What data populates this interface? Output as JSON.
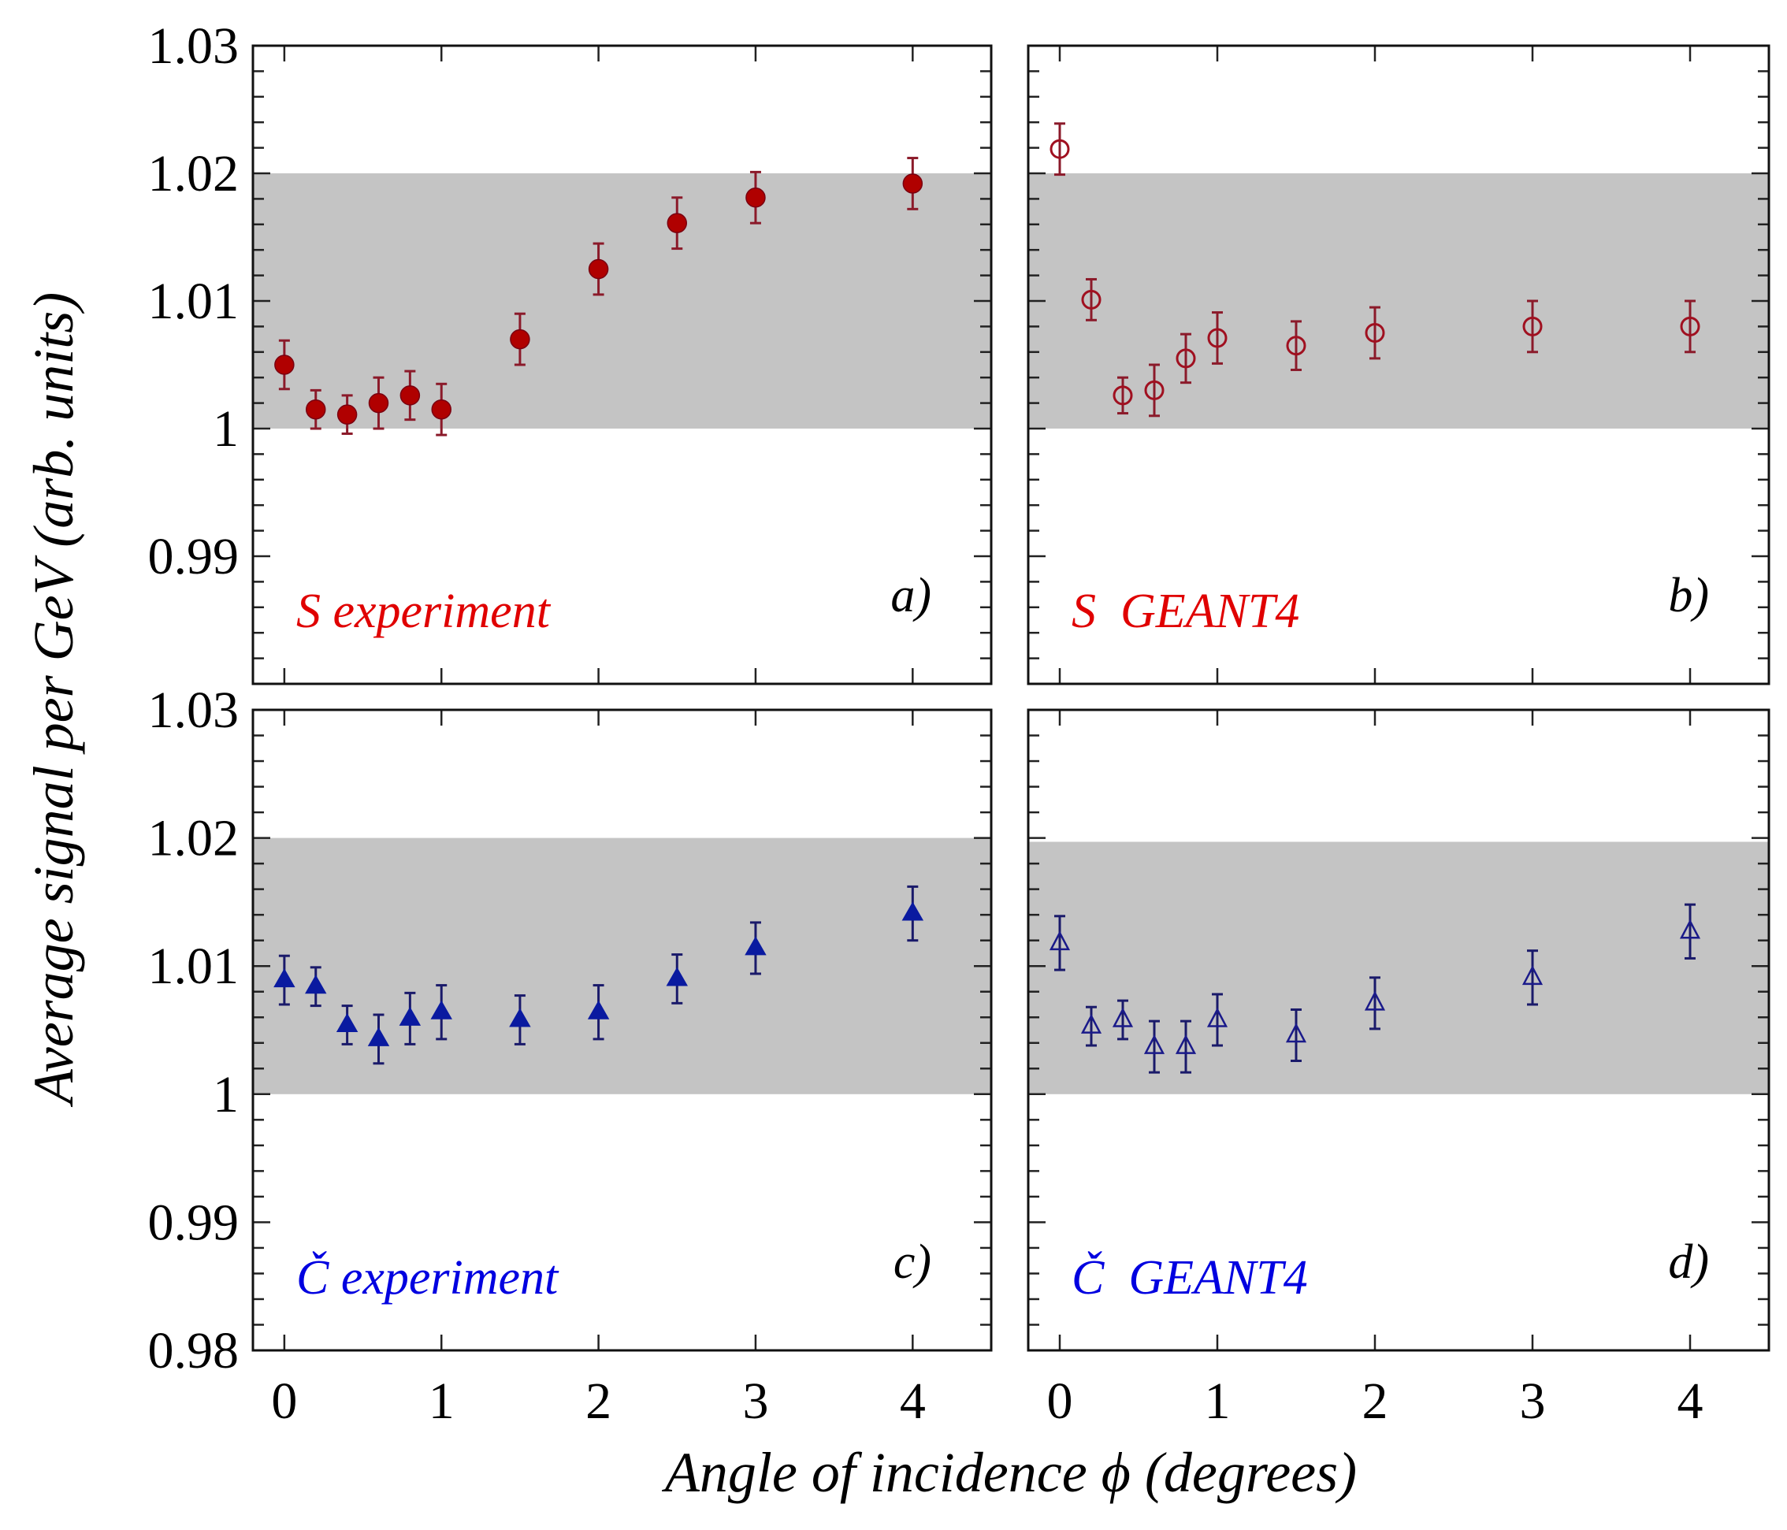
{
  "figure": {
    "xlabel": "Angle of incidence ϕ (degrees)",
    "ylabel": "Average signal per GeV (arb. units)",
    "band_color": "#c4c4c4"
  },
  "chart_data": [
    {
      "type": "scatter",
      "panel": "a",
      "tag": "a)",
      "label": "S experiment",
      "label_color": "#e00000",
      "marker": "filled-circle",
      "marker_color": "#b00000",
      "errorbar_color": "#8b1a2a",
      "x": [
        0,
        0.2,
        0.4,
        0.6,
        0.8,
        1.0,
        1.5,
        2.0,
        2.5,
        3.0,
        4.0
      ],
      "y": [
        1.005,
        1.0015,
        1.0011,
        1.002,
        1.0026,
        1.0015,
        1.007,
        1.0125,
        1.0161,
        1.0181,
        1.0192
      ],
      "yerr": [
        0.0019,
        0.0015,
        0.0015,
        0.002,
        0.0019,
        0.002,
        0.002,
        0.002,
        0.002,
        0.002,
        0.002
      ],
      "band": [
        1.0,
        1.02
      ],
      "xlim": [
        -0.2,
        4.5
      ],
      "ylim": [
        0.98,
        1.03
      ],
      "xticks": [
        0,
        1,
        2,
        3,
        4
      ],
      "yticks": [
        0.99,
        1.0,
        1.01,
        1.02,
        1.03
      ],
      "ytick_labels": [
        "0.99",
        "1",
        "1.01",
        "1.02",
        "1.03"
      ],
      "show_xtick_labels": false,
      "show_ytick_labels": true
    },
    {
      "type": "scatter",
      "panel": "b",
      "tag": "b)",
      "label": "S  GEANT4",
      "label_color": "#e00000",
      "marker": "open-circle",
      "marker_color": "#a01020",
      "errorbar_color": "#8b1a2a",
      "x": [
        0,
        0.2,
        0.4,
        0.6,
        0.8,
        1.0,
        1.5,
        2.0,
        3.0,
        4.0
      ],
      "y": [
        1.0219,
        1.0101,
        1.0026,
        1.003,
        1.0055,
        1.0071,
        1.0065,
        1.0075,
        1.008,
        1.008
      ],
      "yerr": [
        0.002,
        0.0016,
        0.0014,
        0.002,
        0.0019,
        0.002,
        0.0019,
        0.002,
        0.002,
        0.002
      ],
      "band": [
        1.0,
        1.02
      ],
      "xlim": [
        -0.2,
        4.5
      ],
      "ylim": [
        0.98,
        1.03
      ],
      "xticks": [
        0,
        1,
        2,
        3,
        4
      ],
      "yticks": [
        0.99,
        1.0,
        1.01,
        1.02,
        1.03
      ],
      "show_xtick_labels": false,
      "show_ytick_labels": false
    },
    {
      "type": "scatter",
      "panel": "c",
      "tag": "c)",
      "label": "Č experiment",
      "label_color": "#0000e0",
      "marker": "filled-triangle",
      "marker_color": "#0a1aa0",
      "errorbar_color": "#1a1a6a",
      "x": [
        0,
        0.2,
        0.4,
        0.6,
        0.8,
        1.0,
        1.5,
        2.0,
        2.5,
        3.0,
        4.0
      ],
      "y": [
        1.0089,
        1.0084,
        1.0054,
        1.0043,
        1.0059,
        1.0064,
        1.0058,
        1.0064,
        1.009,
        1.0114,
        1.0141
      ],
      "yerr": [
        0.0019,
        0.0015,
        0.0015,
        0.0019,
        0.002,
        0.0021,
        0.0019,
        0.0021,
        0.0019,
        0.002,
        0.0021
      ],
      "band": [
        1.0,
        1.02
      ],
      "xlim": [
        -0.2,
        4.5
      ],
      "ylim": [
        0.98,
        1.03
      ],
      "xticks": [
        0,
        1,
        2,
        3,
        4
      ],
      "xtick_labels": [
        "0",
        "1",
        "2",
        "3",
        "4"
      ],
      "yticks": [
        0.98,
        0.99,
        1.0,
        1.01,
        1.02,
        1.03
      ],
      "ytick_labels": [
        "0.98",
        "0.99",
        "1",
        "1.01",
        "1.02",
        "1.03"
      ],
      "show_xtick_labels": true,
      "show_ytick_labels": true
    },
    {
      "type": "scatter",
      "panel": "d",
      "tag": "d)",
      "label": "Č  GEANT4",
      "label_color": "#0000e0",
      "marker": "open-triangle",
      "marker_color": "#1a1a8a",
      "errorbar_color": "#1a1a6a",
      "x": [
        0,
        0.2,
        0.4,
        0.6,
        0.8,
        1.0,
        1.5,
        2.0,
        3.0,
        4.0
      ],
      "y": [
        1.0118,
        1.0053,
        1.0058,
        1.0037,
        1.0037,
        1.0058,
        1.0046,
        1.0071,
        1.0091,
        1.0127
      ],
      "yerr": [
        0.0021,
        0.0015,
        0.0015,
        0.002,
        0.002,
        0.002,
        0.002,
        0.002,
        0.0021,
        0.0021
      ],
      "band": [
        1.0,
        1.0197
      ],
      "xlim": [
        -0.2,
        4.5
      ],
      "ylim": [
        0.98,
        1.03
      ],
      "xticks": [
        0,
        1,
        2,
        3,
        4
      ],
      "xtick_labels": [
        "0",
        "1",
        "2",
        "3",
        "4"
      ],
      "yticks": [
        0.98,
        0.99,
        1.0,
        1.01,
        1.02,
        1.03
      ],
      "show_xtick_labels": true,
      "show_ytick_labels": false
    }
  ]
}
